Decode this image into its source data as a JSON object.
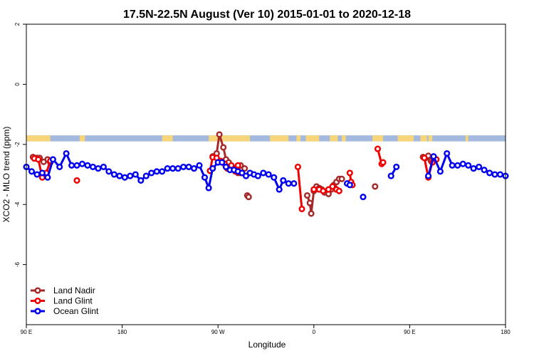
{
  "chart_data": {
    "type": "line",
    "title": "17.5N-22.5N August (Ver 10)   2015-01-01 to 2020-12-18",
    "xlabel": "Longitude",
    "ylabel": "XCO2 - MLO trend (ppm)",
    "xlim": [
      -180,
      180
    ],
    "ylim": [
      -8,
      2
    ],
    "x_ticks": [
      {
        "value": -180,
        "label": "90 E"
      },
      {
        "value": -108,
        "label": "180"
      },
      {
        "value": -36,
        "label": "90 W"
      },
      {
        "value": 36,
        "label": "0"
      },
      {
        "value": 108,
        "label": "90 E"
      },
      {
        "value": 180,
        "label": "180"
      }
    ],
    "y_ticks": [
      {
        "value": 2,
        "label": "2"
      },
      {
        "value": 0,
        "label": "0"
      },
      {
        "value": -2,
        "label": "-2"
      },
      {
        "value": -4,
        "label": "-4"
      },
      {
        "value": -6,
        "label": "-6"
      }
    ],
    "grid": false,
    "legend_position": "bottom-left",
    "land_ocean_strip": {
      "y_range": [
        -1.9,
        -1.7
      ],
      "ocean_color": "#a3b9de",
      "land_color": "#f7d57a",
      "land_x_ranges": [
        [
          -180,
          -162
        ],
        [
          -140,
          -136
        ],
        [
          -78,
          -70
        ],
        [
          -43,
          -12
        ],
        [
          3,
          17
        ],
        [
          23,
          26
        ],
        [
          30,
          40
        ],
        [
          48,
          54
        ],
        [
          57,
          60
        ],
        [
          80,
          88
        ],
        [
          99,
          111
        ],
        [
          116,
          121
        ],
        [
          122,
          125
        ],
        [
          150,
          152
        ]
      ]
    },
    "series": [
      {
        "name": "Land Nadir",
        "color": "#a52a2a",
        "segments": [
          [
            [
              -175,
              -2.42
            ],
            [
              -172,
              -2.45
            ],
            [
              -170,
              -2.45
            ],
            [
              -167,
              -2.58
            ],
            [
              -164,
              -2.5
            ],
            [
              -162,
              -2.6
            ]
          ],
          [
            [
              -40,
              -2.4
            ],
            [
              -37,
              -2.3
            ],
            [
              -35,
              -1.67
            ],
            [
              -32,
              -2.1
            ],
            [
              -30,
              -2.5
            ],
            [
              -28,
              -2.6
            ],
            [
              -24,
              -2.8
            ],
            [
              -21,
              -2.95
            ],
            [
              -19,
              -2.7
            ],
            [
              -16,
              -2.8
            ]
          ],
          [
            [
              -14,
              -3.7
            ],
            [
              -13,
              -3.75
            ]
          ],
          [
            [
              31,
              -3.7
            ],
            [
              33,
              -3.95
            ],
            [
              34,
              -4.3
            ],
            [
              36,
              -3.55
            ],
            [
              38,
              -3.4
            ],
            [
              40,
              -3.45
            ],
            [
              42,
              -3.5
            ],
            [
              44,
              -3.6
            ],
            [
              47,
              -3.65
            ],
            [
              49,
              -3.5
            ],
            [
              51,
              -3.35
            ],
            [
              53,
              -3.25
            ],
            [
              55,
              -3.15
            ],
            [
              57,
              -3.15
            ]
          ],
          [
            [
              82,
              -3.4
            ]
          ],
          [
            [
              118,
              -2.42
            ],
            [
              120,
              -2.45
            ],
            [
              122,
              -2.38
            ],
            [
              124,
              -2.55
            ]
          ]
        ]
      },
      {
        "name": "Land Glint",
        "color": "#ee0000",
        "segments": [
          [
            [
              -174,
              -2.47
            ],
            [
              -171,
              -2.5
            ],
            [
              -168,
              -3.1
            ],
            [
              -165,
              -2.95
            ],
            [
              -162,
              -2.55
            ]
          ],
          [
            [
              -142,
              -3.2
            ]
          ],
          [
            [
              -42,
              -2.88
            ],
            [
              -40,
              -2.43
            ],
            [
              -37,
              -2.45
            ],
            [
              -34,
              -2.55
            ],
            [
              -31,
              -2.65
            ],
            [
              -29,
              -2.8
            ],
            [
              -26,
              -2.7
            ],
            [
              -23,
              -2.9
            ],
            [
              -21,
              -2.7
            ],
            [
              -19,
              -2.95
            ]
          ],
          [
            [
              24,
              -2.75
            ],
            [
              27,
              -4.15
            ]
          ],
          [
            [
              36,
              -3.5
            ],
            [
              40,
              -3.5
            ],
            [
              43,
              -3.55
            ],
            [
              47,
              -3.5
            ],
            [
              50,
              -3.4
            ],
            [
              53,
              -3.5
            ],
            [
              55,
              -3.55
            ]
          ],
          [
            [
              63,
              -2.95
            ],
            [
              64,
              -3.25
            ],
            [
              65,
              -3.35
            ]
          ],
          [
            [
              84,
              -2.15
            ],
            [
              87,
              -2.65
            ],
            [
              88,
              -2.6
            ]
          ],
          [
            [
              119,
              -2.45
            ],
            [
              122,
              -3.1
            ],
            [
              125,
              -2.6
            ],
            [
              128,
              -2.5
            ]
          ]
        ]
      },
      {
        "name": "Ocean Glint",
        "color": "#0000ee",
        "segments": [
          [
            [
              -180,
              -2.75
            ],
            [
              -176,
              -2.9
            ],
            [
              -172,
              -3.0
            ],
            [
              -168,
              -2.95
            ],
            [
              -164,
              -3.1
            ],
            [
              -160,
              -2.5
            ],
            [
              -155,
              -2.75
            ],
            [
              -150,
              -2.3
            ],
            [
              -146,
              -2.7
            ],
            [
              -142,
              -2.7
            ],
            [
              -138,
              -2.65
            ],
            [
              -134,
              -2.7
            ],
            [
              -130,
              -2.75
            ],
            [
              -126,
              -2.8
            ],
            [
              -122,
              -2.75
            ],
            [
              -118,
              -2.9
            ],
            [
              -114,
              -3.0
            ],
            [
              -110,
              -3.05
            ],
            [
              -106,
              -3.1
            ],
            [
              -102,
              -3.05
            ],
            [
              -98,
              -3.0
            ],
            [
              -94,
              -3.2
            ],
            [
              -90,
              -3.05
            ],
            [
              -86,
              -2.95
            ],
            [
              -82,
              -2.9
            ],
            [
              -78,
              -2.9
            ],
            [
              -74,
              -2.8
            ],
            [
              -70,
              -2.8
            ],
            [
              -66,
              -2.8
            ],
            [
              -62,
              -2.75
            ],
            [
              -58,
              -2.75
            ],
            [
              -54,
              -2.8
            ],
            [
              -50,
              -2.7
            ],
            [
              -46,
              -3.1
            ],
            [
              -43,
              -3.45
            ],
            [
              -40,
              -2.8
            ],
            [
              -36,
              -2.6
            ],
            [
              -33,
              -2.6
            ],
            [
              -30,
              -2.75
            ],
            [
              -27,
              -2.85
            ],
            [
              -24,
              -2.85
            ],
            [
              -21,
              -2.9
            ],
            [
              -18,
              -2.95
            ],
            [
              -15,
              -3.05
            ],
            [
              -12,
              -2.95
            ],
            [
              -9,
              -3.0
            ],
            [
              -6,
              -3.05
            ],
            [
              -2,
              -2.95
            ],
            [
              2,
              -3.0
            ],
            [
              6,
              -3.1
            ],
            [
              10,
              -3.5
            ],
            [
              13,
              -3.2
            ],
            [
              17,
              -3.3
            ],
            [
              21,
              -3.3
            ]
          ],
          [
            [
              61,
              -3.3
            ],
            [
              63,
              -3.35
            ]
          ],
          [
            [
              73,
              -3.75
            ]
          ],
          [
            [
              94,
              -3.05
            ],
            [
              98,
              -2.75
            ]
          ],
          [
            [
              122,
              -3.05
            ],
            [
              126,
              -2.4
            ],
            [
              131,
              -2.9
            ],
            [
              136,
              -2.3
            ],
            [
              140,
              -2.7
            ],
            [
              144,
              -2.7
            ],
            [
              148,
              -2.65
            ],
            [
              152,
              -2.7
            ],
            [
              156,
              -2.8
            ],
            [
              160,
              -2.75
            ],
            [
              164,
              -2.85
            ],
            [
              168,
              -2.95
            ],
            [
              172,
              -3.0
            ],
            [
              176,
              -3.0
            ],
            [
              180,
              -3.05
            ]
          ]
        ]
      }
    ]
  }
}
